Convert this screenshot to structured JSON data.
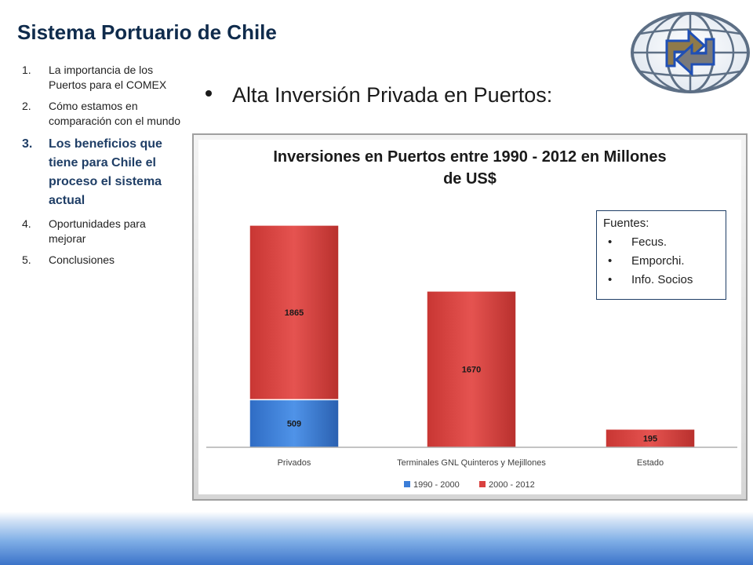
{
  "slide": {
    "title": "Sistema Portuario de Chile",
    "heading": "Alta Inversión Privada en Puertos:"
  },
  "agenda": {
    "items": [
      {
        "num": "1.",
        "label": "La importancia de los Puertos para el COMEX",
        "active": false
      },
      {
        "num": "2.",
        "label": "Cómo estamos en comparación con el mundo",
        "active": false
      },
      {
        "num": "3.",
        "label": "Los beneficios que tiene para Chile el proceso el sistema actual",
        "active": true
      },
      {
        "num": "4.",
        "label": "Oportunidades para mejorar",
        "active": false
      },
      {
        "num": "5.",
        "label": "Conclusiones",
        "active": false
      }
    ]
  },
  "sources": {
    "title": "Fuentes:",
    "items": [
      "Fecus.",
      "Emporchi.",
      "Info. Socios"
    ]
  },
  "logo": {
    "icon": "globe-arrows-logo"
  },
  "colors": {
    "accent": "#0f2b4c",
    "series_1990_2000": "#3b7dd8",
    "series_2000_2012": "#d9413f"
  },
  "chart_data": {
    "type": "bar",
    "stacked": true,
    "title": "Inversiones en Puertos entre 1990 - 2012 en Millones de US$",
    "categories": [
      "Privados",
      "Terminales GNL Quinteros y Mejillones",
      "Estado"
    ],
    "series": [
      {
        "name": "1990 - 2000",
        "values": [
          509,
          0,
          0
        ],
        "color": "#3b7dd8"
      },
      {
        "name": "2000 - 2012",
        "values": [
          1865,
          1670,
          195
        ],
        "color": "#d9413f"
      }
    ],
    "data_labels": [
      [
        "509",
        "",
        ""
      ],
      [
        "1865",
        "1670",
        "195"
      ]
    ],
    "ylim": [
      0,
      2700
    ],
    "grid": false,
    "legend": "bottom"
  }
}
